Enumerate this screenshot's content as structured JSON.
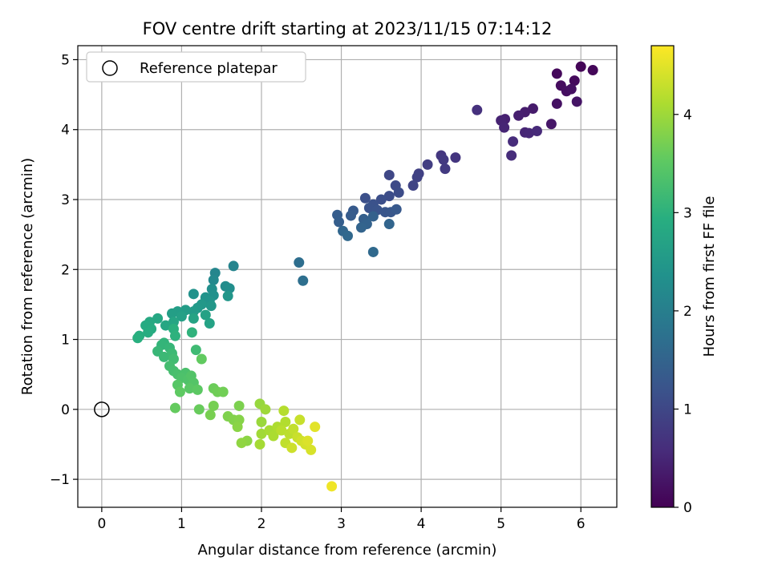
{
  "chart_data": {
    "type": "scatter",
    "title": "FOV centre drift starting at 2023/11/15 07:14:12",
    "xlabel": "Angular distance from reference (arcmin)",
    "ylabel": "Rotation from reference (arcmin)",
    "xlim": [
      -0.3,
      6.45
    ],
    "ylim": [
      -1.4,
      5.2
    ],
    "xticks": [
      0,
      1,
      2,
      3,
      4,
      5,
      6
    ],
    "yticks": [
      -1,
      0,
      1,
      2,
      3,
      4,
      5
    ],
    "xtick_labels": [
      "0",
      "1",
      "2",
      "3",
      "4",
      "5",
      "6"
    ],
    "ytick_labels": [
      "−1",
      "0",
      "1",
      "2",
      "3",
      "4",
      "5"
    ],
    "grid": true,
    "legend": {
      "position": "top-left",
      "label": "Reference platepar"
    },
    "reference_point": {
      "x": 0,
      "y": 0
    },
    "colorbar": {
      "label": "Hours from first FF file",
      "colormap": "viridis",
      "range": [
        0,
        4.7
      ],
      "ticks": [
        0,
        1,
        2,
        3,
        4
      ],
      "tick_labels": [
        "0",
        "1",
        "2",
        "3",
        "4"
      ]
    },
    "points": [
      {
        "x": 6.0,
        "y": 4.9,
        "t": 0.05
      },
      {
        "x": 6.15,
        "y": 4.85,
        "t": 0.08
      },
      {
        "x": 5.7,
        "y": 4.8,
        "t": 0.1
      },
      {
        "x": 5.92,
        "y": 4.7,
        "t": 0.12
      },
      {
        "x": 5.75,
        "y": 4.63,
        "t": 0.15
      },
      {
        "x": 5.82,
        "y": 4.55,
        "t": 0.18
      },
      {
        "x": 5.88,
        "y": 4.58,
        "t": 0.2
      },
      {
        "x": 5.7,
        "y": 4.37,
        "t": 0.22
      },
      {
        "x": 5.95,
        "y": 4.4,
        "t": 0.25
      },
      {
        "x": 5.63,
        "y": 4.08,
        "t": 0.3
      },
      {
        "x": 5.4,
        "y": 4.3,
        "t": 0.35
      },
      {
        "x": 5.3,
        "y": 4.25,
        "t": 0.38
      },
      {
        "x": 5.22,
        "y": 4.2,
        "t": 0.4
      },
      {
        "x": 5.05,
        "y": 4.15,
        "t": 0.42
      },
      {
        "x": 5.0,
        "y": 4.13,
        "t": 0.45
      },
      {
        "x": 5.04,
        "y": 4.03,
        "t": 0.48
      },
      {
        "x": 5.3,
        "y": 3.96,
        "t": 0.5
      },
      {
        "x": 5.35,
        "y": 3.95,
        "t": 0.52
      },
      {
        "x": 5.45,
        "y": 3.98,
        "t": 0.55
      },
      {
        "x": 5.15,
        "y": 3.83,
        "t": 0.58
      },
      {
        "x": 5.13,
        "y": 3.63,
        "t": 0.6
      },
      {
        "x": 4.7,
        "y": 4.28,
        "t": 0.65
      },
      {
        "x": 4.43,
        "y": 3.6,
        "t": 0.72
      },
      {
        "x": 4.25,
        "y": 3.63,
        "t": 0.75
      },
      {
        "x": 4.28,
        "y": 3.57,
        "t": 0.78
      },
      {
        "x": 4.3,
        "y": 3.44,
        "t": 0.8
      },
      {
        "x": 4.08,
        "y": 3.5,
        "t": 0.85
      },
      {
        "x": 3.97,
        "y": 3.37,
        "t": 0.9
      },
      {
        "x": 3.95,
        "y": 3.32,
        "t": 0.92
      },
      {
        "x": 3.9,
        "y": 3.2,
        "t": 0.95
      },
      {
        "x": 3.6,
        "y": 3.35,
        "t": 1.0
      },
      {
        "x": 3.68,
        "y": 3.2,
        "t": 1.05
      },
      {
        "x": 3.72,
        "y": 3.1,
        "t": 1.08
      },
      {
        "x": 3.6,
        "y": 3.05,
        "t": 1.1
      },
      {
        "x": 3.5,
        "y": 3.0,
        "t": 1.12
      },
      {
        "x": 3.3,
        "y": 3.02,
        "t": 1.15
      },
      {
        "x": 3.4,
        "y": 2.93,
        "t": 1.18
      },
      {
        "x": 3.35,
        "y": 2.88,
        "t": 1.2
      },
      {
        "x": 3.45,
        "y": 2.85,
        "t": 1.22
      },
      {
        "x": 3.55,
        "y": 2.82,
        "t": 1.25
      },
      {
        "x": 3.62,
        "y": 2.82,
        "t": 1.27
      },
      {
        "x": 3.69,
        "y": 2.86,
        "t": 1.3
      },
      {
        "x": 3.15,
        "y": 2.84,
        "t": 1.32
      },
      {
        "x": 3.12,
        "y": 2.77,
        "t": 1.35
      },
      {
        "x": 2.95,
        "y": 2.78,
        "t": 1.38
      },
      {
        "x": 2.97,
        "y": 2.68,
        "t": 1.4
      },
      {
        "x": 3.28,
        "y": 2.72,
        "t": 1.42
      },
      {
        "x": 3.4,
        "y": 2.76,
        "t": 1.45
      },
      {
        "x": 3.32,
        "y": 2.65,
        "t": 1.47
      },
      {
        "x": 3.25,
        "y": 2.6,
        "t": 1.5
      },
      {
        "x": 3.6,
        "y": 2.65,
        "t": 1.52
      },
      {
        "x": 3.02,
        "y": 2.55,
        "t": 1.55
      },
      {
        "x": 3.08,
        "y": 2.48,
        "t": 1.57
      },
      {
        "x": 3.4,
        "y": 2.25,
        "t": 1.6
      },
      {
        "x": 2.47,
        "y": 2.1,
        "t": 1.68
      },
      {
        "x": 2.52,
        "y": 1.84,
        "t": 1.7
      },
      {
        "x": 1.65,
        "y": 2.05,
        "t": 2.1
      },
      {
        "x": 1.42,
        "y": 1.95,
        "t": 2.15
      },
      {
        "x": 1.4,
        "y": 1.85,
        "t": 2.2
      },
      {
        "x": 1.55,
        "y": 1.76,
        "t": 2.25
      },
      {
        "x": 1.6,
        "y": 1.73,
        "t": 2.3
      },
      {
        "x": 1.38,
        "y": 1.72,
        "t": 2.32
      },
      {
        "x": 1.4,
        "y": 1.63,
        "t": 2.35
      },
      {
        "x": 1.15,
        "y": 1.65,
        "t": 2.38
      },
      {
        "x": 1.3,
        "y": 1.6,
        "t": 2.4
      },
      {
        "x": 1.35,
        "y": 1.55,
        "t": 2.42
      },
      {
        "x": 1.58,
        "y": 1.62,
        "t": 2.45
      },
      {
        "x": 1.37,
        "y": 1.48,
        "t": 2.48
      },
      {
        "x": 1.25,
        "y": 1.5,
        "t": 2.5
      },
      {
        "x": 1.2,
        "y": 1.45,
        "t": 2.52
      },
      {
        "x": 1.15,
        "y": 1.4,
        "t": 2.55
      },
      {
        "x": 1.05,
        "y": 1.42,
        "t": 2.58
      },
      {
        "x": 0.95,
        "y": 1.4,
        "t": 2.6
      },
      {
        "x": 0.88,
        "y": 1.37,
        "t": 2.62
      },
      {
        "x": 1.0,
        "y": 1.33,
        "t": 2.65
      },
      {
        "x": 1.3,
        "y": 1.35,
        "t": 2.67
      },
      {
        "x": 1.35,
        "y": 1.23,
        "t": 2.7
      },
      {
        "x": 1.15,
        "y": 1.3,
        "t": 2.72
      },
      {
        "x": 0.9,
        "y": 1.25,
        "t": 2.75
      },
      {
        "x": 0.8,
        "y": 1.2,
        "t": 2.78
      },
      {
        "x": 0.7,
        "y": 1.3,
        "t": 2.8
      },
      {
        "x": 0.6,
        "y": 1.25,
        "t": 2.82
      },
      {
        "x": 0.55,
        "y": 1.2,
        "t": 2.85
      },
      {
        "x": 0.62,
        "y": 1.15,
        "t": 2.87
      },
      {
        "x": 0.58,
        "y": 1.1,
        "t": 2.9
      },
      {
        "x": 0.47,
        "y": 1.05,
        "t": 2.92
      },
      {
        "x": 0.45,
        "y": 1.02,
        "t": 2.95
      },
      {
        "x": 0.9,
        "y": 1.15,
        "t": 2.97
      },
      {
        "x": 0.92,
        "y": 1.05,
        "t": 3.0
      },
      {
        "x": 1.13,
        "y": 1.1,
        "t": 3.02
      },
      {
        "x": 0.78,
        "y": 0.95,
        "t": 3.05
      },
      {
        "x": 0.75,
        "y": 0.92,
        "t": 3.07
      },
      {
        "x": 0.85,
        "y": 0.88,
        "t": 3.1
      },
      {
        "x": 0.7,
        "y": 0.83,
        "t": 3.12
      },
      {
        "x": 0.78,
        "y": 0.75,
        "t": 3.15
      },
      {
        "x": 0.88,
        "y": 0.8,
        "t": 3.17
      },
      {
        "x": 1.18,
        "y": 0.85,
        "t": 3.2
      },
      {
        "x": 0.9,
        "y": 0.72,
        "t": 3.22
      },
      {
        "x": 0.85,
        "y": 0.62,
        "t": 3.25
      },
      {
        "x": 0.9,
        "y": 0.55,
        "t": 3.27
      },
      {
        "x": 0.95,
        "y": 0.5,
        "t": 3.3
      },
      {
        "x": 1.05,
        "y": 0.52,
        "t": 3.32
      },
      {
        "x": 1.0,
        "y": 0.45,
        "t": 3.35
      },
      {
        "x": 1.08,
        "y": 0.42,
        "t": 3.37
      },
      {
        "x": 1.12,
        "y": 0.48,
        "t": 3.4
      },
      {
        "x": 1.15,
        "y": 0.38,
        "t": 3.42
      },
      {
        "x": 0.95,
        "y": 0.35,
        "t": 3.45
      },
      {
        "x": 1.1,
        "y": 0.3,
        "t": 3.47
      },
      {
        "x": 1.2,
        "y": 0.28,
        "t": 3.5
      },
      {
        "x": 0.98,
        "y": 0.25,
        "t": 3.52
      },
      {
        "x": 1.25,
        "y": 0.72,
        "t": 3.55
      },
      {
        "x": 0.92,
        "y": 0.02,
        "t": 3.57
      },
      {
        "x": 1.22,
        "y": 0.0,
        "t": 3.6
      },
      {
        "x": 1.4,
        "y": 0.3,
        "t": 3.62
      },
      {
        "x": 1.45,
        "y": 0.25,
        "t": 3.65
      },
      {
        "x": 1.52,
        "y": 0.25,
        "t": 3.67
      },
      {
        "x": 1.4,
        "y": 0.05,
        "t": 3.7
      },
      {
        "x": 1.36,
        "y": -0.08,
        "t": 3.72
      },
      {
        "x": 1.72,
        "y": 0.05,
        "t": 3.75
      },
      {
        "x": 1.58,
        "y": -0.1,
        "t": 3.77
      },
      {
        "x": 1.65,
        "y": -0.15,
        "t": 3.8
      },
      {
        "x": 1.72,
        "y": -0.15,
        "t": 3.82
      },
      {
        "x": 1.7,
        "y": -0.25,
        "t": 3.85
      },
      {
        "x": 1.82,
        "y": -0.45,
        "t": 3.87
      },
      {
        "x": 1.75,
        "y": -0.48,
        "t": 3.9
      },
      {
        "x": 1.98,
        "y": 0.08,
        "t": 3.95
      },
      {
        "x": 2.0,
        "y": -0.18,
        "t": 3.97
      },
      {
        "x": 2.05,
        "y": 0.0,
        "t": 4.0
      },
      {
        "x": 2.0,
        "y": -0.35,
        "t": 4.02
      },
      {
        "x": 1.98,
        "y": -0.5,
        "t": 4.05
      },
      {
        "x": 2.1,
        "y": -0.3,
        "t": 4.07
      },
      {
        "x": 2.15,
        "y": -0.38,
        "t": 4.1
      },
      {
        "x": 2.2,
        "y": -0.25,
        "t": 4.12
      },
      {
        "x": 2.3,
        "y": -0.18,
        "t": 4.15
      },
      {
        "x": 2.28,
        "y": -0.02,
        "t": 4.17
      },
      {
        "x": 2.25,
        "y": -0.3,
        "t": 4.2
      },
      {
        "x": 2.35,
        "y": -0.35,
        "t": 4.22
      },
      {
        "x": 2.3,
        "y": -0.48,
        "t": 4.25
      },
      {
        "x": 2.4,
        "y": -0.28,
        "t": 4.27
      },
      {
        "x": 2.48,
        "y": -0.15,
        "t": 4.3
      },
      {
        "x": 2.45,
        "y": -0.4,
        "t": 4.32
      },
      {
        "x": 2.38,
        "y": -0.55,
        "t": 4.35
      },
      {
        "x": 2.5,
        "y": -0.45,
        "t": 4.37
      },
      {
        "x": 2.55,
        "y": -0.5,
        "t": 4.4
      },
      {
        "x": 2.62,
        "y": -0.58,
        "t": 4.42
      },
      {
        "x": 2.58,
        "y": -0.45,
        "t": 4.45
      },
      {
        "x": 2.67,
        "y": -0.25,
        "t": 4.5
      },
      {
        "x": 2.88,
        "y": -1.1,
        "t": 4.6
      }
    ]
  }
}
